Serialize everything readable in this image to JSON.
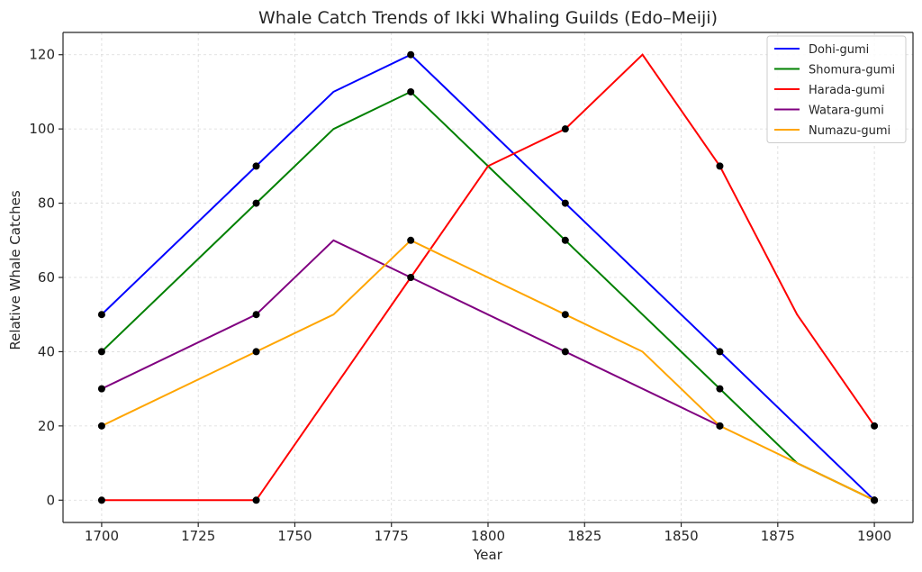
{
  "chart_data": {
    "type": "line",
    "title": "Whale Catch Trends of Ikki Whaling Guilds (Edo–Meiji)",
    "xlabel": "Year",
    "ylabel": "Relative Whale Catches",
    "xlim": [
      1690,
      1910
    ],
    "ylim": [
      -6,
      126
    ],
    "xticks": [
      1700,
      1725,
      1750,
      1775,
      1800,
      1825,
      1850,
      1875,
      1900
    ],
    "yticks": [
      0,
      20,
      40,
      60,
      80,
      100,
      120
    ],
    "grid": true,
    "legend_position": "top-right",
    "series": [
      {
        "name": "Dohi-gumi",
        "color": "#0000ff",
        "x": [
          1700,
          1740,
          1760,
          1780,
          1820,
          1860,
          1900
        ],
        "y": [
          50,
          90,
          110,
          120,
          80,
          40,
          0
        ]
      },
      {
        "name": "Shomura-gumi",
        "color": "#008000",
        "x": [
          1700,
          1740,
          1760,
          1780,
          1800,
          1820,
          1860,
          1880,
          1900
        ],
        "y": [
          40,
          80,
          100,
          110,
          90,
          70,
          30,
          10,
          0
        ]
      },
      {
        "name": "Harada-gumi",
        "color": "#ff0000",
        "x": [
          1700,
          1740,
          1760,
          1780,
          1800,
          1820,
          1840,
          1860,
          1880,
          1900
        ],
        "y": [
          0,
          0,
          30,
          60,
          90,
          100,
          120,
          90,
          50,
          20
        ]
      },
      {
        "name": "Watara-gumi",
        "color": "#800080",
        "x": [
          1700,
          1740,
          1760,
          1780,
          1820,
          1860
        ],
        "y": [
          30,
          50,
          70,
          60,
          40,
          20
        ]
      },
      {
        "name": "Numazu-gumi",
        "color": "#ffa500",
        "x": [
          1700,
          1740,
          1760,
          1780,
          1820,
          1840,
          1860,
          1900
        ],
        "y": [
          20,
          40,
          50,
          70,
          50,
          40,
          20,
          0
        ]
      }
    ],
    "markers": {
      "color": "#000000",
      "points": [
        [
          1700,
          50
        ],
        [
          1740,
          90
        ],
        [
          1780,
          120
        ],
        [
          1820,
          80
        ],
        [
          1860,
          40
        ],
        [
          1900,
          0
        ],
        [
          1700,
          40
        ],
        [
          1740,
          80
        ],
        [
          1780,
          110
        ],
        [
          1820,
          70
        ],
        [
          1860,
          30
        ],
        [
          1900,
          0
        ],
        [
          1700,
          0
        ],
        [
          1740,
          0
        ],
        [
          1820,
          100
        ],
        [
          1860,
          90
        ],
        [
          1900,
          20
        ],
        [
          1700,
          30
        ],
        [
          1740,
          50
        ],
        [
          1780,
          60
        ],
        [
          1820,
          40
        ],
        [
          1860,
          20
        ],
        [
          1700,
          20
        ],
        [
          1740,
          40
        ],
        [
          1780,
          70
        ],
        [
          1820,
          50
        ],
        [
          1860,
          20
        ],
        [
          1900,
          0
        ]
      ]
    }
  }
}
